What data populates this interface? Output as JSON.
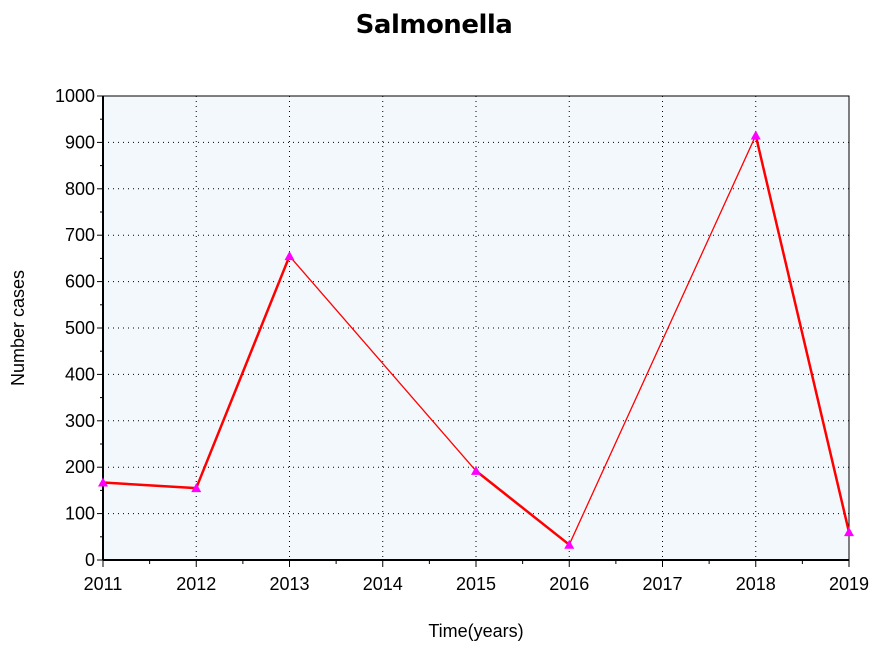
{
  "chart_data": {
    "type": "line",
    "title": "Salmonella",
    "xlabel": "Time(years)",
    "ylabel": "Number cases",
    "x": [
      2011,
      2012,
      2013,
      2014,
      2015,
      2016,
      2017,
      2018,
      2019
    ],
    "xlim": [
      2011,
      2019
    ],
    "ylim": [
      0,
      1000
    ],
    "yticks": [
      0,
      100,
      200,
      300,
      400,
      500,
      600,
      700,
      800,
      900,
      1000
    ],
    "grid": true,
    "series": [
      {
        "points": [
          {
            "x": 2011,
            "y": 167
          },
          {
            "x": 2012,
            "y": 155
          },
          {
            "x": 2013,
            "y": 655
          },
          {
            "x": 2015,
            "y": 192
          },
          {
            "x": 2016,
            "y": 33
          },
          {
            "x": 2018,
            "y": 915
          },
          {
            "x": 2019,
            "y": 60
          }
        ],
        "line_color": "#ff0000",
        "marker_color": "#ff00ff"
      }
    ],
    "plot_background": "#f3f8fd",
    "grid_color": "#000000"
  }
}
